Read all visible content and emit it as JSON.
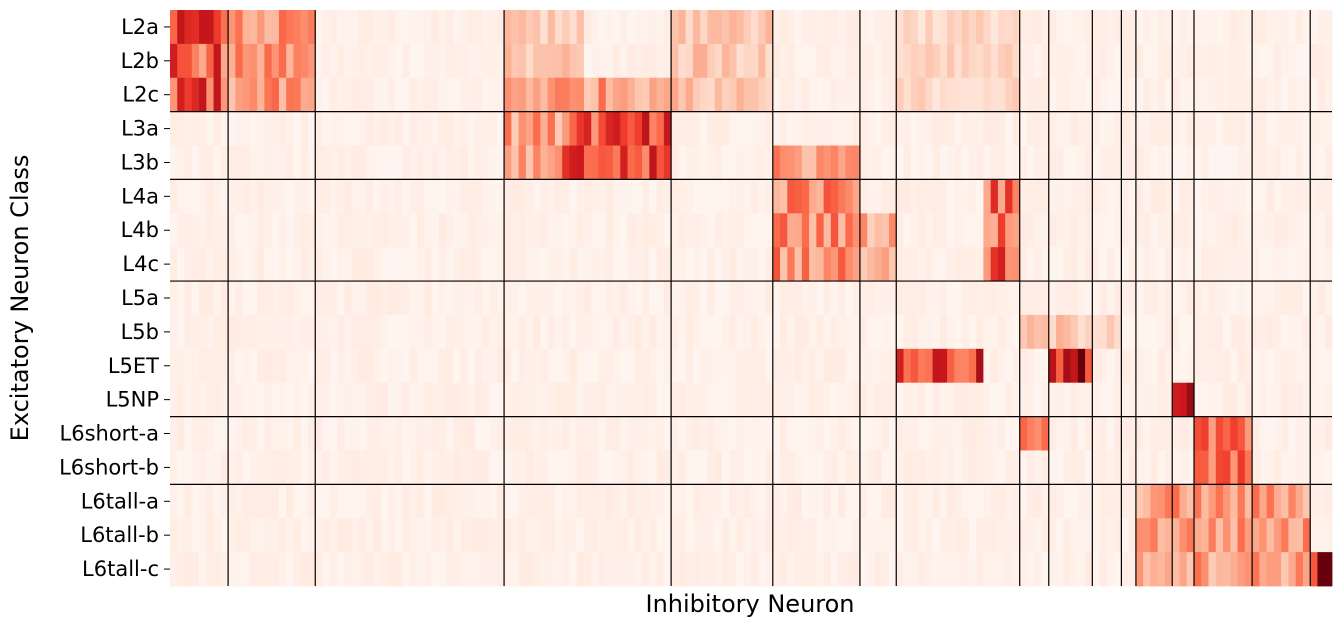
{
  "chart_data": {
    "type": "heatmap",
    "title": "",
    "xlabel": "Inhibitory Neuron",
    "ylabel": "Excitatory Neuron Class",
    "rows": [
      "L2a",
      "L2b",
      "L2c",
      "L3a",
      "L3b",
      "L4a",
      "L4b",
      "L4c",
      "L5a",
      "L5b",
      "L5ET",
      "L5NP",
      "L6short-a",
      "L6short-b",
      "L6tall-a",
      "L6tall-b",
      "L6tall-c"
    ],
    "row_group_boundaries_after": [
      2,
      4,
      7,
      11,
      13
    ],
    "n_columns": 160,
    "column_group_boundaries": [
      8,
      20,
      46,
      69,
      83,
      95,
      100,
      117,
      121,
      127,
      131,
      133,
      138,
      141,
      149,
      157
    ],
    "colormap": "Reds",
    "value_range": [
      0,
      1
    ],
    "x_ticks": false,
    "grid": false,
    "blocks": [
      {
        "rows": [
          0,
          2
        ],
        "cols": [
          0,
          8
        ],
        "value": 0.55
      },
      {
        "rows": [
          0,
          2
        ],
        "cols": [
          8,
          20
        ],
        "value": 0.35
      },
      {
        "rows": [
          0,
          2
        ],
        "cols": [
          46,
          57
        ],
        "value": 0.2
      },
      {
        "rows": [
          2,
          4
        ],
        "cols": [
          46,
          69
        ],
        "value": 0.35
      },
      {
        "rows": [
          3,
          4
        ],
        "cols": [
          54,
          69
        ],
        "value": 0.55
      },
      {
        "rows": [
          0,
          2
        ],
        "cols": [
          69,
          83
        ],
        "value": 0.22
      },
      {
        "rows": [
          0,
          2
        ],
        "cols": [
          100,
          117
        ],
        "value": 0.15
      },
      {
        "rows": [
          4,
          4
        ],
        "cols": [
          83,
          95
        ],
        "value": 0.35
      },
      {
        "rows": [
          5,
          7
        ],
        "cols": [
          83,
          95
        ],
        "value": 0.4
      },
      {
        "rows": [
          6,
          7
        ],
        "cols": [
          95,
          100
        ],
        "value": 0.3
      },
      {
        "rows": [
          5,
          7
        ],
        "cols": [
          112,
          117
        ],
        "value": 0.5
      },
      {
        "rows": [
          10,
          10
        ],
        "cols": [
          100,
          112
        ],
        "value": 0.6
      },
      {
        "rows": [
          10,
          10
        ],
        "cols": [
          121,
          127
        ],
        "value": 0.75
      },
      {
        "rows": [
          9,
          9
        ],
        "cols": [
          117,
          131
        ],
        "value": 0.2
      },
      {
        "rows": [
          11,
          11
        ],
        "cols": [
          138,
          141
        ],
        "value": 0.9
      },
      {
        "rows": [
          12,
          13
        ],
        "cols": [
          141,
          149
        ],
        "value": 0.45
      },
      {
        "rows": [
          14,
          16
        ],
        "cols": [
          133,
          157
        ],
        "value": 0.35
      },
      {
        "rows": [
          16,
          16
        ],
        "cols": [
          157,
          160
        ],
        "value": 0.95
      },
      {
        "rows": [
          12,
          12
        ],
        "cols": [
          117,
          121
        ],
        "value": 0.55
      }
    ]
  }
}
